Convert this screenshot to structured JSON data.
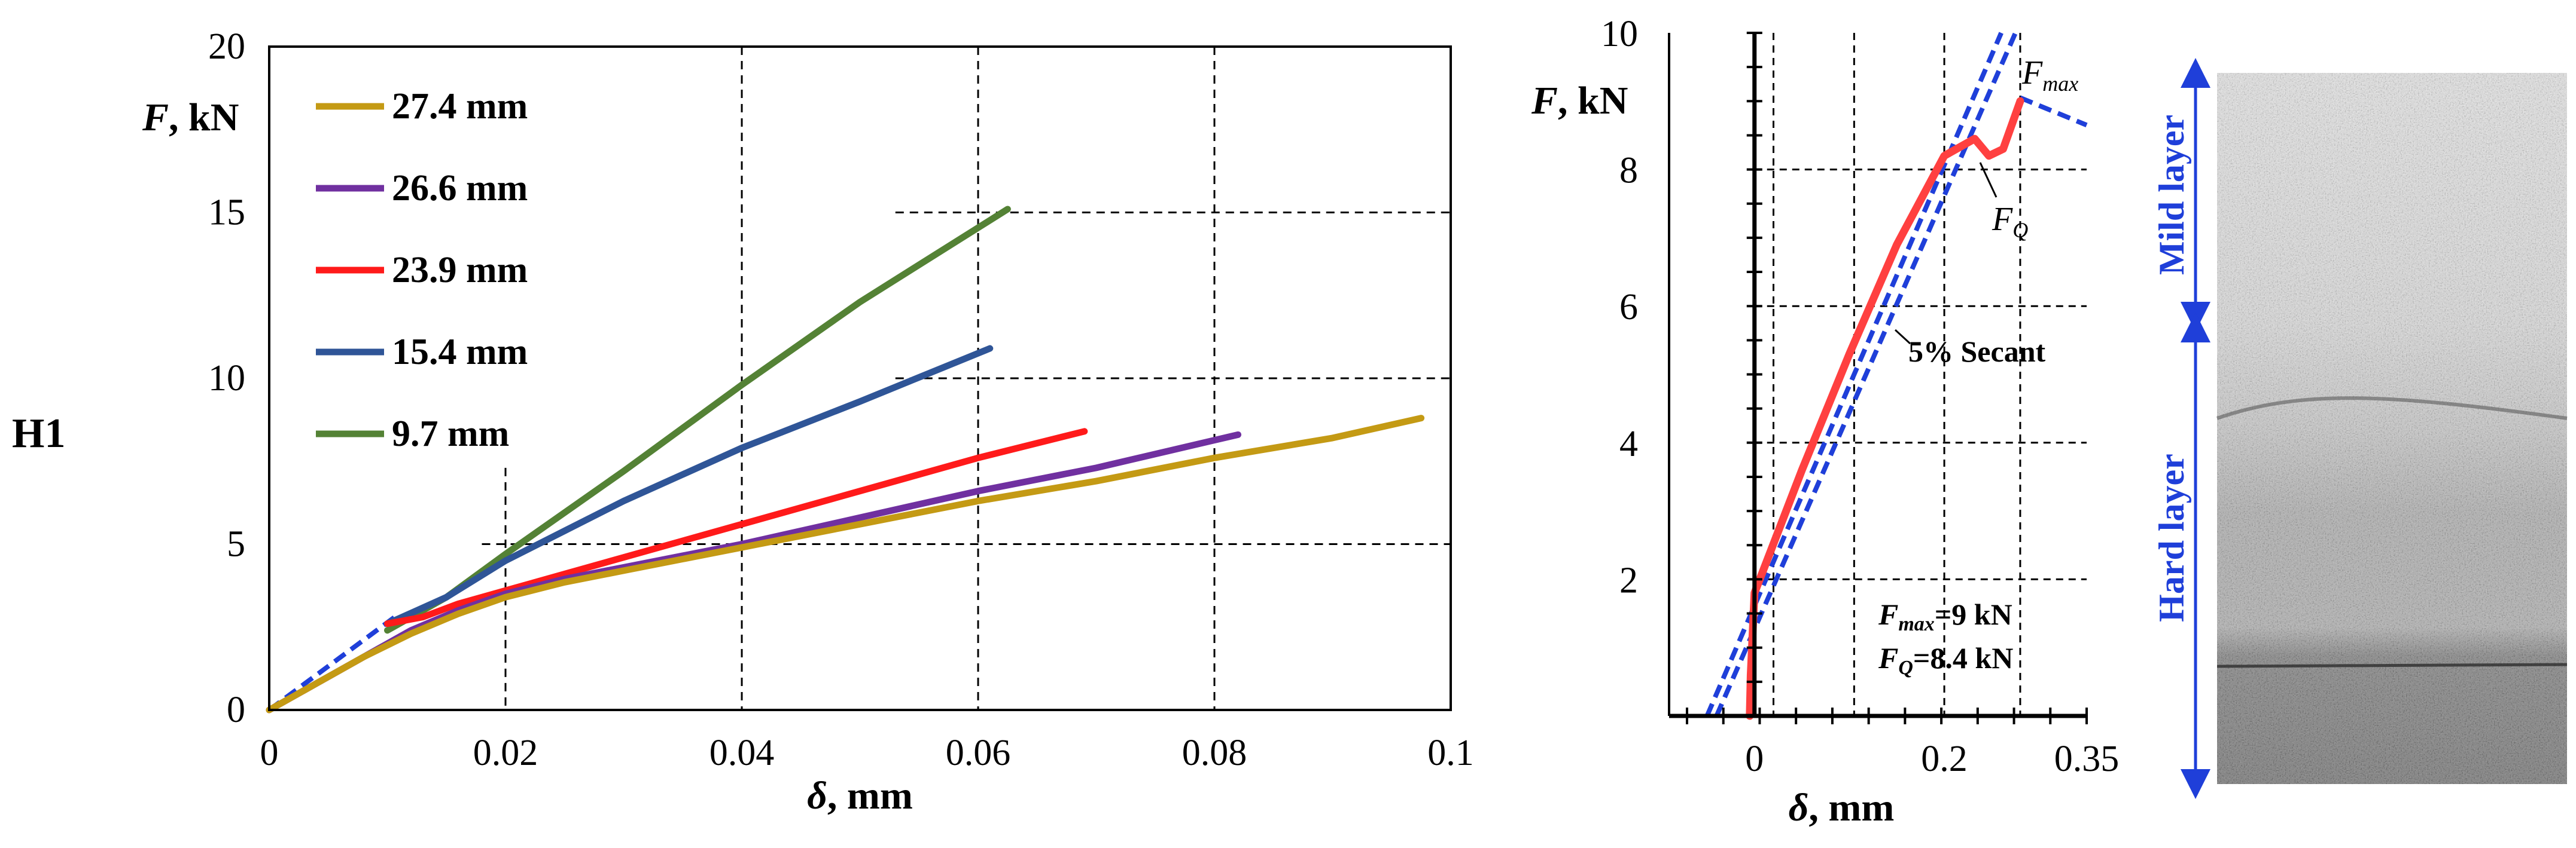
{
  "panel_label": "H1",
  "chart_data": [
    {
      "type": "line",
      "title": "",
      "xlabel": "δ, mm",
      "ylabel": "F, kN",
      "xlim": [
        0,
        0.1
      ],
      "ylim": [
        0,
        20
      ],
      "xticks": [
        "0",
        "0.02",
        "0.04",
        "0.06",
        "0.08",
        "0.1"
      ],
      "yticks": [
        "0",
        "5",
        "10",
        "15",
        "20"
      ],
      "grid": "dashed",
      "legend_position": "top-left",
      "series": [
        {
          "name": "27.4 mm",
          "color": "#c49a14",
          "x": [
            0,
            0.004,
            0.008,
            0.012,
            0.016,
            0.02,
            0.025,
            0.03,
            0.04,
            0.05,
            0.06,
            0.07,
            0.08,
            0.09,
            0.0975
          ],
          "y": [
            0,
            0.8,
            1.6,
            2.3,
            2.9,
            3.4,
            3.85,
            4.2,
            4.9,
            5.6,
            6.3,
            6.9,
            7.6,
            8.2,
            8.8
          ]
        },
        {
          "name": "26.6 mm",
          "color": "#7030a0",
          "x": [
            0,
            0.004,
            0.008,
            0.012,
            0.016,
            0.02,
            0.025,
            0.03,
            0.04,
            0.05,
            0.06,
            0.07,
            0.082
          ],
          "y": [
            0,
            0.8,
            1.6,
            2.4,
            3.0,
            3.5,
            3.95,
            4.3,
            5.0,
            5.8,
            6.6,
            7.3,
            8.3
          ]
        },
        {
          "name": "23.9 mm",
          "color": "#ff1a1a",
          "x": [
            0.01,
            0.013,
            0.016,
            0.02,
            0.025,
            0.03,
            0.04,
            0.05,
            0.06,
            0.069
          ],
          "y": [
            2.6,
            2.8,
            3.2,
            3.6,
            4.1,
            4.6,
            5.6,
            6.6,
            7.6,
            8.4
          ]
        },
        {
          "name": "15.4 mm",
          "color": "#2f5597",
          "x": [
            0.01,
            0.015,
            0.02,
            0.025,
            0.03,
            0.04,
            0.05,
            0.061
          ],
          "y": [
            2.6,
            3.4,
            4.5,
            5.4,
            6.3,
            7.9,
            9.3,
            10.9
          ]
        },
        {
          "name": "9.7 mm",
          "color": "#548235",
          "x": [
            0.01,
            0.015,
            0.02,
            0.03,
            0.04,
            0.05,
            0.0625
          ],
          "y": [
            2.4,
            3.4,
            4.7,
            7.2,
            9.8,
            12.3,
            15.1
          ]
        }
      ],
      "reference_line": {
        "name": "initial stiffness",
        "style": "dashed",
        "color": "#1f3fd9",
        "x": [
          0,
          0.011
        ],
        "y": [
          0,
          2.9
        ]
      }
    },
    {
      "type": "line",
      "title": "",
      "xlabel": "δ, mm",
      "ylabel": "F, kN",
      "xlim": [
        -0.09,
        0.35
      ],
      "ylim": [
        0,
        10
      ],
      "xticks": [
        "0",
        "0.2",
        "0.35"
      ],
      "yticks": [
        "2",
        "4",
        "6",
        "8",
        "10"
      ],
      "grid": "dashed",
      "series": [
        {
          "name": "load curve",
          "color": "#ff4040",
          "x": [
            -0.005,
            -0.004,
            -0.002,
            0,
            0.05,
            0.1,
            0.15,
            0.2,
            0.232,
            0.247,
            0.262,
            0.28
          ],
          "y": [
            0,
            0.6,
            1.2,
            1.8,
            3.6,
            5.3,
            6.9,
            8.2,
            8.45,
            8.2,
            8.3,
            9.0
          ]
        }
      ],
      "secant_lines": [
        {
          "name": "tangent",
          "style": "dashed",
          "color": "#1f3fd9",
          "x": [
            -0.05,
            0.26
          ],
          "y": [
            0,
            10
          ]
        },
        {
          "name": "5% Secant",
          "style": "dashed",
          "color": "#1f3fd9",
          "x": [
            -0.04,
            0.275
          ],
          "y": [
            0,
            10
          ]
        }
      ],
      "tail_line": {
        "style": "dashed",
        "color": "#1f3fd9",
        "x": [
          0.28,
          0.35
        ],
        "y": [
          9.05,
          8.65
        ]
      },
      "annotations": {
        "fmax": "F",
        "fmax_sub": "max",
        "fq": "F",
        "fq_sub": "Q",
        "secant": "5% Secant",
        "result_fmax_symbol": "F",
        "result_fmax_sub": "max",
        "result_fmax_value": "=9 kN",
        "result_fq_symbol": "F",
        "result_fq_sub": "Q",
        "result_fq_value": "=8.4 kN"
      }
    }
  ],
  "micrograph": {
    "mild_label": "Mild layer",
    "hard_label": "Hard layer",
    "arrow_color": "#1f3fd9"
  }
}
